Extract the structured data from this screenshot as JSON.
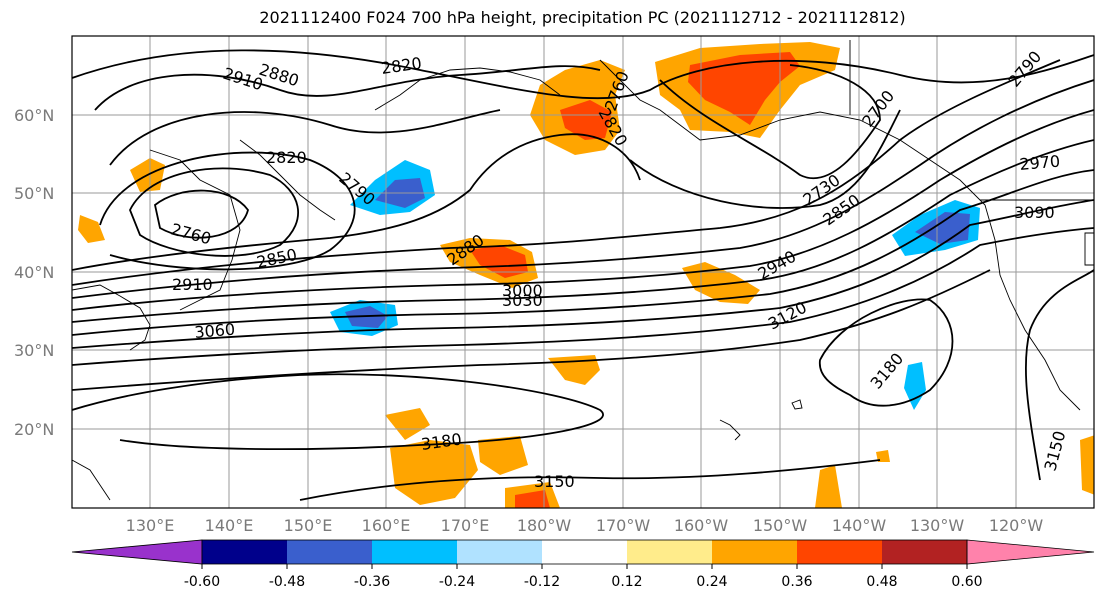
{
  "title": "2021112400 F024 700 hPa height, precipitation PC (2021112712 - 2021112812)",
  "lat_labels": [
    "60°N",
    "50°N",
    "40°N",
    "30°N",
    "20°N"
  ],
  "lon_labels": [
    "130°E",
    "140°E",
    "150°E",
    "160°E",
    "170°E",
    "180°W",
    "170°W",
    "160°W",
    "150°W",
    "140°W",
    "130°W",
    "120°W"
  ],
  "contour_labels": [
    "2880",
    "2820",
    "2790",
    "2910",
    "2760",
    "2820",
    "2790",
    "2760",
    "2850",
    "2910",
    "3060",
    "2880",
    "3000",
    "3030",
    "2820",
    "2730",
    "2700",
    "2850",
    "2940",
    "3120",
    "2970",
    "3090",
    "3180",
    "3180",
    "3150",
    "3150"
  ],
  "colorbar": {
    "ticks": [
      "-0.60",
      "-0.48",
      "-0.36",
      "-0.24",
      "-0.12",
      "0.12",
      "0.24",
      "0.36",
      "0.48",
      "0.60"
    ],
    "colors": [
      "#9932cc",
      "#00008b",
      "#3a5fcd",
      "#00bfff",
      "#b0e2ff",
      "#ffffff",
      "#ffec8b",
      "#ffa500",
      "#ff4500",
      "#b22222",
      "#ff82ab"
    ]
  },
  "colors": {
    "positive_shade": "#ffa500",
    "strong_positive": "#ff4500",
    "negative_shade": "#00bfff",
    "strong_negative": "#3a5fcd",
    "grid": "#9a9a9a",
    "contour": "#000000"
  }
}
